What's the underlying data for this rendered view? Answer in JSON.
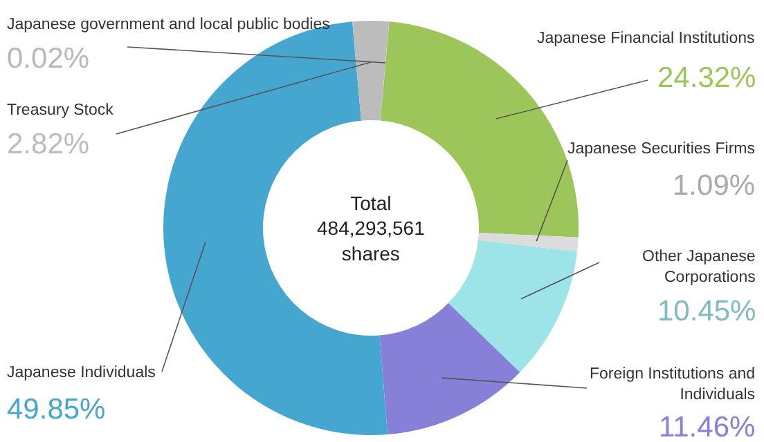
{
  "chart_data": {
    "type": "donut",
    "categories": [
      "Japanese government and local public bodies",
      "Japanese Financial Institutions",
      "Japanese Securities Firms",
      "Other Japanese Corporations",
      "Foreign Institutions and Individuals",
      "Japanese Individuals",
      "Treasury Stock"
    ],
    "values": [
      0.02,
      24.32,
      1.09,
      10.45,
      11.46,
      49.85,
      2.82
    ],
    "value_labels": [
      "0.02%",
      "24.32%",
      "1.09%",
      "10.45%",
      "11.46%",
      "49.85%",
      "2.82%"
    ],
    "colors": [
      "#b8b8b8",
      "#9cc65a",
      "#dcdcdc",
      "#9de4e9",
      "#8780d8",
      "#45a6d0",
      "#bcbcbc"
    ],
    "annotations": [
      "Total\n484,293,561\nshares"
    ],
    "legend": false
  }
}
